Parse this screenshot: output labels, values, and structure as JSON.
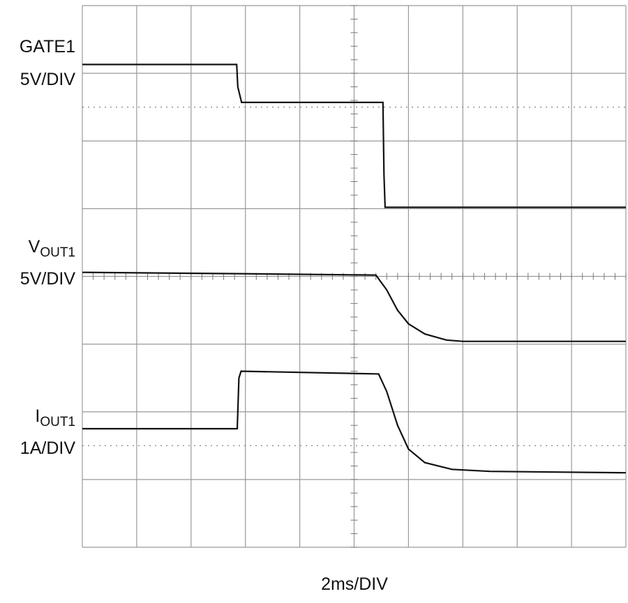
{
  "chart_data": {
    "type": "line",
    "x_label": "2ms/DIV",
    "xlim": [
      0,
      10
    ],
    "ylim": [
      0,
      8
    ],
    "grid": true,
    "series": [
      {
        "name": "GATE1",
        "scale": "5V/DIV",
        "color": "#111111",
        "x": [
          0,
          2.84,
          2.86,
          2.93,
          5.53,
          5.55,
          5.57,
          10
        ],
        "values": [
          7.13,
          7.13,
          6.8,
          6.57,
          6.57,
          5.5,
          5.02,
          5.02
        ]
      },
      {
        "name": "V",
        "subscript": "OUT1",
        "scale": "5V/DIV",
        "color": "#111111",
        "x": [
          0,
          2.9,
          5.4,
          5.6,
          5.8,
          6.0,
          6.3,
          6.7,
          7.0,
          10
        ],
        "values": [
          4.06,
          4.04,
          4.02,
          3.8,
          3.5,
          3.3,
          3.15,
          3.06,
          3.04,
          3.04
        ]
      },
      {
        "name": "I",
        "subscript": "OUT1",
        "scale": "1A/DIV",
        "color": "#111111",
        "x": [
          0,
          2.85,
          2.88,
          2.92,
          5.45,
          5.6,
          5.8,
          6.0,
          6.3,
          6.8,
          7.5,
          10
        ],
        "values": [
          1.75,
          1.75,
          2.5,
          2.6,
          2.56,
          2.3,
          1.8,
          1.45,
          1.25,
          1.15,
          1.12,
          1.1
        ]
      }
    ]
  }
}
